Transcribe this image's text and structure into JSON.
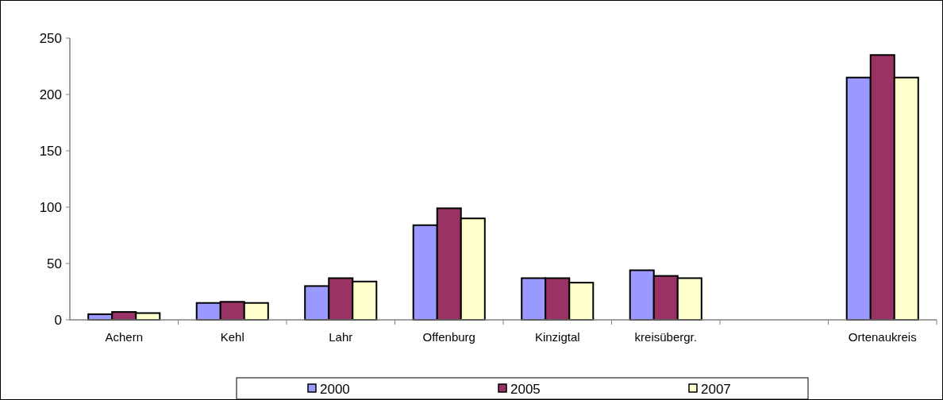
{
  "chart_data": {
    "type": "bar",
    "categories": [
      "Achern",
      "Kehl",
      "Lahr",
      "Offenburg",
      "Kinzigtal",
      "kreisübergr.",
      null,
      "Ortenaukreis"
    ],
    "series": [
      {
        "name": "2000",
        "color": "#9999ff",
        "values": [
          5,
          15,
          30,
          84,
          37,
          44,
          null,
          215
        ]
      },
      {
        "name": "2005",
        "color": "#993366",
        "values": [
          7,
          16,
          37,
          99,
          37,
          39,
          null,
          235
        ]
      },
      {
        "name": "2007",
        "color": "#ffffcc",
        "values": [
          6,
          15,
          34,
          90,
          33,
          37,
          null,
          215
        ]
      }
    ],
    "ylim": [
      0,
      250
    ],
    "yticks": [
      0,
      50,
      100,
      150,
      200,
      250
    ],
    "grid": false,
    "legend": "bottom"
  }
}
